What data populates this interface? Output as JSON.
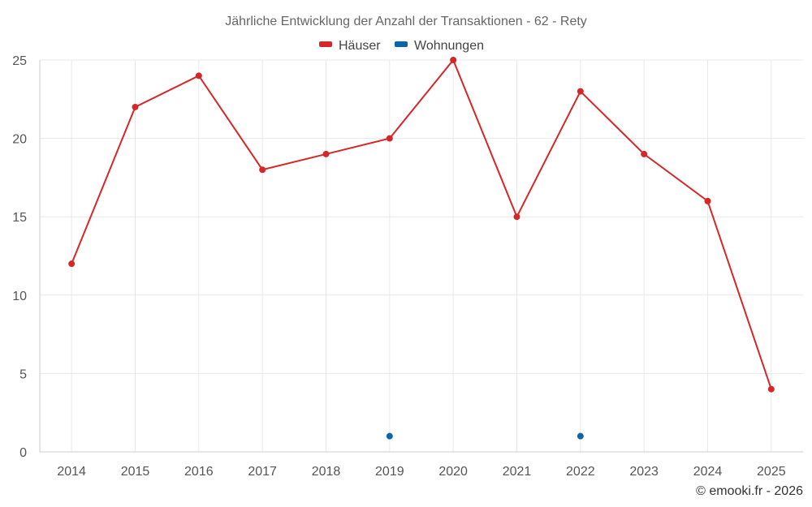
{
  "chart_data": {
    "type": "line",
    "title": "Jährliche Entwicklung der Anzahl der Transaktionen - 62 - Rety",
    "categories": [
      "2014",
      "2015",
      "2016",
      "2017",
      "2018",
      "2019",
      "2020",
      "2021",
      "2022",
      "2023",
      "2024",
      "2025"
    ],
    "ylim": [
      0,
      25
    ],
    "yticks": [
      0,
      5,
      10,
      15,
      20,
      25
    ],
    "grid": true,
    "legend_position": "top-center",
    "series": [
      {
        "name": "Häuser",
        "color": "#d62728",
        "values": [
          12,
          22,
          24,
          18,
          19,
          20,
          25,
          15,
          23,
          19,
          16,
          4
        ]
      },
      {
        "name": "Wohnungen",
        "color": "#0a66a8",
        "values": [
          null,
          null,
          null,
          null,
          null,
          1,
          null,
          null,
          1,
          null,
          null,
          null
        ]
      }
    ],
    "xlabel": "",
    "ylabel": ""
  },
  "credit": "© emooki.fr - 2026"
}
